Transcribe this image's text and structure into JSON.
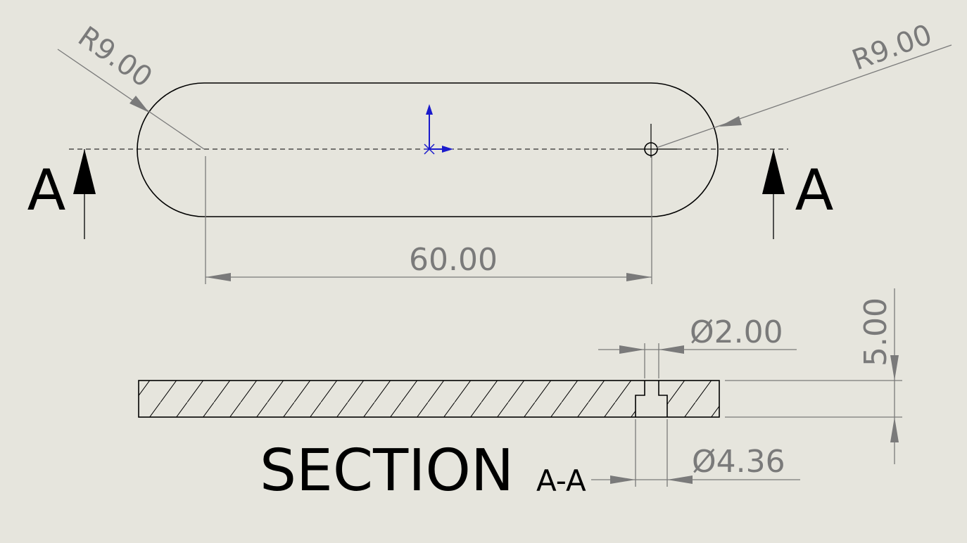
{
  "dimensions": {
    "radius_left": "R9.00",
    "radius_right": "R9.00",
    "center_distance": "60.00",
    "hole_small": "2.00",
    "hole_large": "4.36",
    "thickness": "5.00",
    "diameter_symbol": "Ø"
  },
  "section": {
    "label": "A",
    "title": "SECTION",
    "name": "A-A"
  },
  "colors": {
    "background": "#e6e5dd",
    "geometry": "#000000",
    "dimension": "#7a7a7a",
    "origin": "#1a1acc"
  }
}
